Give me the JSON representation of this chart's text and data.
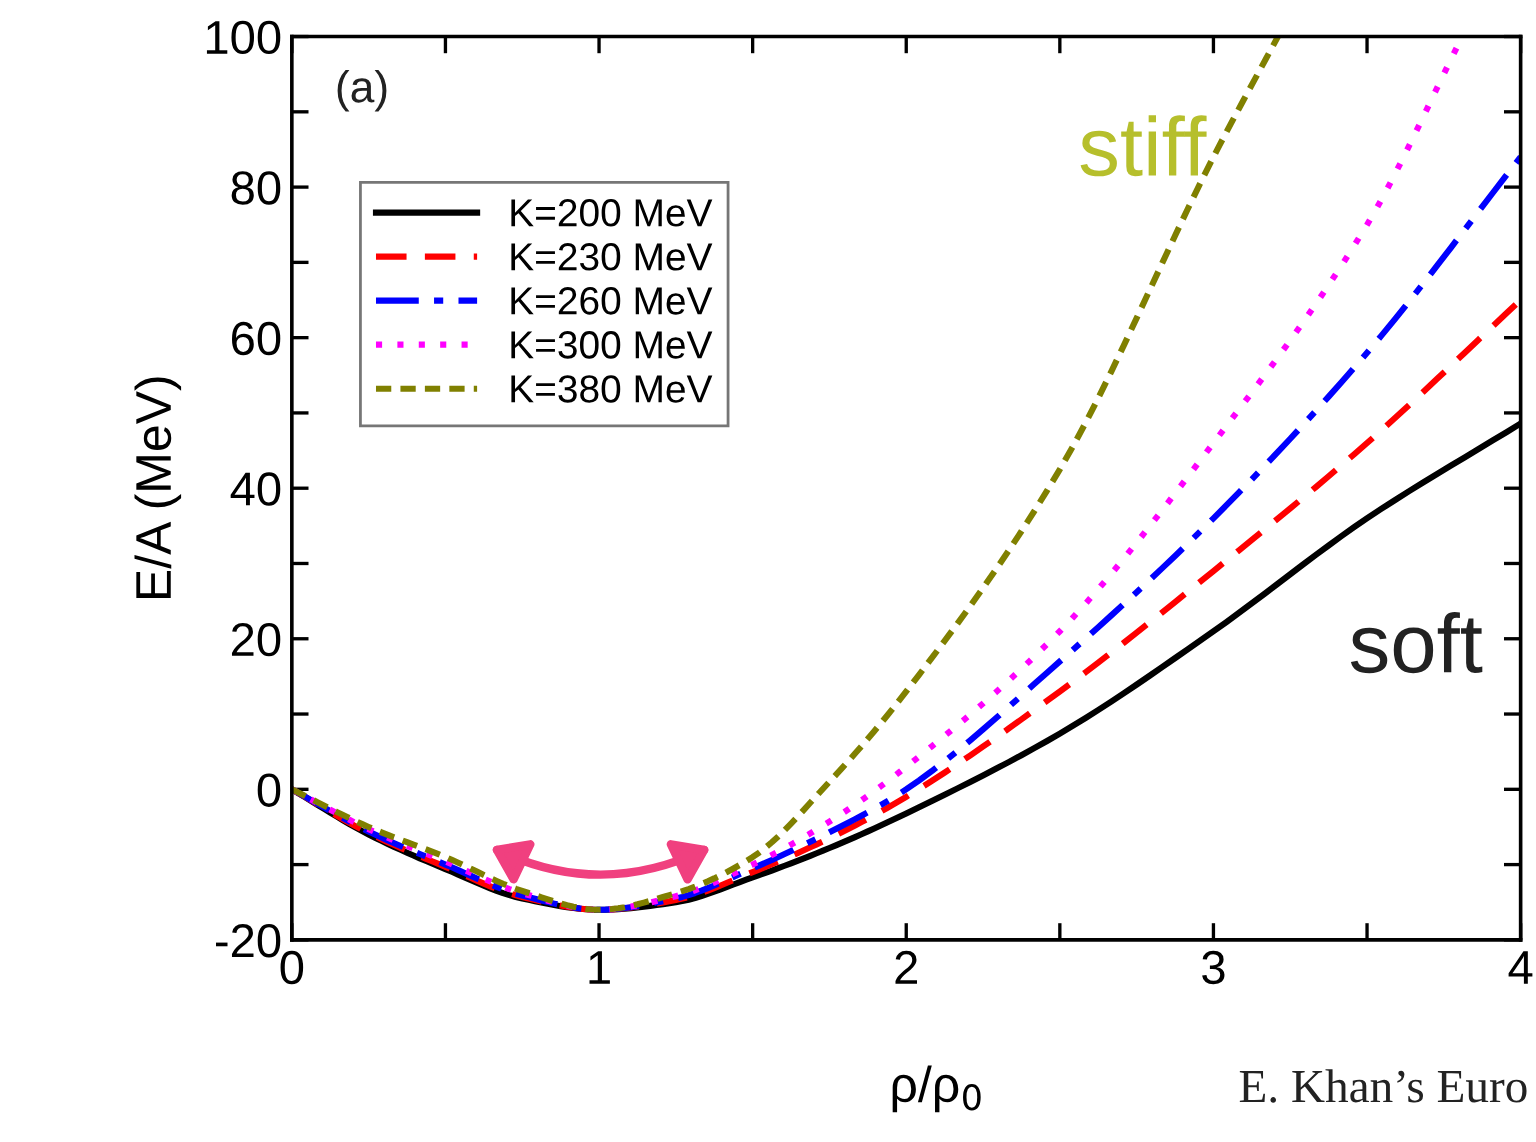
{
  "chart_data": {
    "type": "line",
    "xlabel": "ρ/ρ$_{0}$",
    "ylabel": "E/A (MeV)",
    "x": [
      0,
      0.25,
      0.5,
      0.75,
      1,
      1.25,
      1.5,
      1.75,
      2,
      2.5,
      3,
      3.5,
      4
    ],
    "series": [
      {
        "name": "K=200 MeV",
        "color": "#000000",
        "line_style": "solid",
        "values": [
          0,
          -6,
          -10.6,
          -14.5,
          -16,
          -15,
          -11.7,
          -7.8,
          -3.2,
          7.4,
          21,
          36,
          48.6
        ]
      },
      {
        "name": "K=230 MeV",
        "color": "#ff0000",
        "line_style": "dashed",
        "values": [
          0,
          -5.8,
          -10.3,
          -14.3,
          -16,
          -14.7,
          -11,
          -6.5,
          -1,
          13,
          29,
          46,
          65
        ]
      },
      {
        "name": "K=260 MeV",
        "color": "#0000ff",
        "line_style": "dashdot",
        "values": [
          0,
          -5.6,
          -10,
          -14.1,
          -16,
          -14.5,
          -10.5,
          -5.7,
          0,
          17,
          36,
          58,
          84
        ]
      },
      {
        "name": "K=300 MeV",
        "color": "#ff00ff",
        "line_style": "dotted",
        "x": [
          0,
          0.25,
          0.5,
          0.75,
          1,
          1.25,
          1.5,
          1.75,
          2,
          2.5,
          3,
          3.5,
          3.81
        ],
        "values": [
          0,
          -5.3,
          -9.6,
          -13.8,
          -16,
          -14.2,
          -10,
          -4.3,
          3,
          21,
          46,
          75,
          100
        ]
      },
      {
        "name": "K=380 MeV",
        "color": "#808000",
        "line_style": "dashed",
        "x": [
          0,
          0.25,
          0.5,
          0.75,
          1,
          1.25,
          1.5,
          1.75,
          2,
          2.5,
          3,
          3.21
        ],
        "values": [
          0,
          -5,
          -9,
          -13.5,
          -16,
          -13.8,
          -9,
          1,
          13,
          42.5,
          84,
          100
        ]
      }
    ],
    "xlim": [
      0,
      4
    ],
    "ylim": [
      -20,
      100
    ],
    "xticks": [
      0,
      {
        "value": 0.5,
        "label": null
      },
      1,
      {
        "value": 1.5,
        "label": null
      },
      2,
      {
        "value": 2.5,
        "label": null
      },
      3,
      {
        "value": 3.5,
        "label": null
      },
      4
    ],
    "yticks": [
      -20,
      {
        "value": -10,
        "label": null
      },
      0,
      {
        "value": 10,
        "label": null
      },
      20,
      {
        "value": 30,
        "label": null
      },
      40,
      {
        "value": 50,
        "label": null
      },
      60,
      {
        "value": 70,
        "label": null
      },
      80,
      {
        "value": 90,
        "label": null
      },
      100
    ],
    "grid": false,
    "legend": "top left",
    "marker": "none",
    "annotations": [
      "(a)",
      "stiff",
      "soft",
      "E. Khan’s Euro"
    ]
  }
}
